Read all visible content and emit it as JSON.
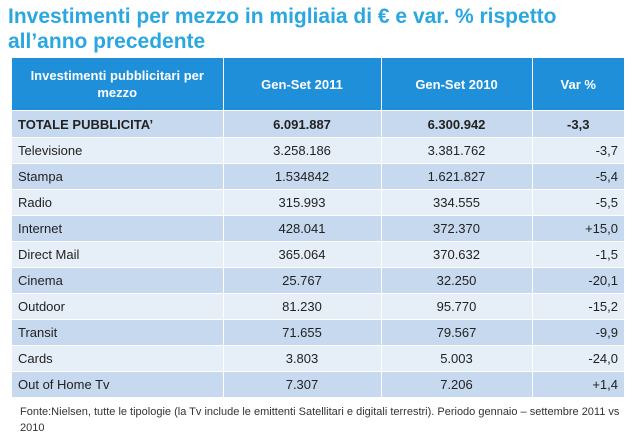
{
  "title": "Investimenti per mezzo in migliaia di € e var. % rispetto all’anno precedente",
  "table": {
    "headers": [
      "Investimenti pubblicitari per mezzo",
      "Gen-Set 2011",
      "Gen-Set 2010",
      "Var  %"
    ],
    "rows": [
      {
        "label": "TOTALE PUBBLICITA’",
        "v2011": "6.091.887",
        "v2010": "6.300.942",
        "var": "-3,3"
      },
      {
        "label": "Televisione",
        "v2011": "3.258.186",
        "v2010": "3.381.762",
        "var": "-3,7"
      },
      {
        "label": "Stampa",
        "v2011": "1.534842",
        "v2010": "1.621.827",
        "var": "-5,4"
      },
      {
        "label": "Radio",
        "v2011": "315.993",
        "v2010": "334.555",
        "var": "-5,5"
      },
      {
        "label": "Internet",
        "v2011": "428.041",
        "v2010": "372.370",
        "var": "+15,0"
      },
      {
        "label": "Direct Mail",
        "v2011": "365.064",
        "v2010": "370.632",
        "var": "-1,5"
      },
      {
        "label": "Cinema",
        "v2011": "25.767",
        "v2010": "32.250",
        "var": "-20,1"
      },
      {
        "label": "Outdoor",
        "v2011": "81.230",
        "v2010": "95.770",
        "var": "-15,2"
      },
      {
        "label": "Transit",
        "v2011": "71.655",
        "v2010": "79.567",
        "var": "-9,9"
      },
      {
        "label": "Cards",
        "v2011": "3.803",
        "v2010": "5.003",
        "var": "-24,0"
      },
      {
        "label": "Out of Home Tv",
        "v2011": "7.307",
        "v2010": "7.206",
        "var": "+1,4"
      }
    ]
  },
  "footnote": "Fonte:Nielsen, tutte le tipologie (la Tv include le emittenti  Satellitari e digitali terrestri). Periodo gennaio – settembre 2011 vs 2010",
  "colors": {
    "title": "#2aa7e0",
    "header_bg": "#1e8fd8",
    "row_dark": "#c7d9ee",
    "row_light": "#e6eef8"
  }
}
